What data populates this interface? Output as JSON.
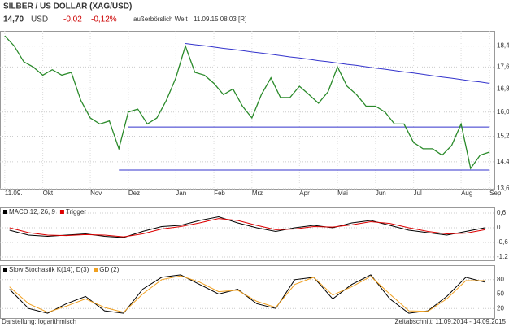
{
  "header": {
    "title": "SILBER / US DOLLAR (XAG/USD)",
    "price": "14,70",
    "unit": "USD",
    "change": "-0,02",
    "change_pct": "-0,12%",
    "market": "außerbörslich Welt",
    "timestamp": "11.09.15 08:03 [R]"
  },
  "footer": {
    "scale": "Darstellung: logarithmisch",
    "period": "Zeitabschnitt: 11.09.2014 - 14.09.2015"
  },
  "chart_data": [
    {
      "type": "line",
      "log_scale": true,
      "grid": true,
      "color": "#2a8a2a",
      "categories": [
        "11.09.",
        null,
        null,
        null,
        "Okt",
        null,
        null,
        null,
        null,
        "Nov",
        null,
        null,
        null,
        "Dez",
        null,
        null,
        null,
        null,
        "Jan",
        null,
        null,
        null,
        "Feb",
        null,
        null,
        null,
        "Mrz",
        null,
        null,
        null,
        null,
        "Apr",
        null,
        null,
        null,
        "Mai",
        null,
        null,
        null,
        "Jun",
        null,
        null,
        null,
        "Jul",
        null,
        null,
        null,
        null,
        "Aug",
        null,
        null,
        "Sep"
      ],
      "values": [
        18.8,
        18.4,
        17.8,
        17.6,
        17.3,
        17.5,
        17.3,
        17.4,
        16.4,
        15.8,
        15.6,
        15.7,
        14.8,
        16.0,
        16.1,
        15.6,
        15.8,
        16.4,
        17.2,
        18.4,
        17.4,
        17.3,
        17.0,
        16.6,
        16.8,
        16.2,
        15.8,
        16.6,
        17.2,
        16.5,
        16.5,
        16.9,
        16.6,
        16.3,
        16.7,
        17.6,
        16.9,
        16.6,
        16.2,
        16.2,
        16.0,
        15.6,
        15.6,
        15.0,
        14.8,
        14.8,
        14.6,
        14.9,
        15.6,
        14.2,
        14.6,
        14.7
      ],
      "lines": [
        {
          "color": "#3333cc",
          "values": [
            null,
            null,
            null,
            null,
            null,
            null,
            null,
            null,
            null,
            null,
            null,
            null,
            null,
            null,
            null,
            null,
            null,
            null,
            null,
            18.5,
            18.45,
            18.41,
            18.36,
            18.31,
            18.27,
            18.22,
            18.17,
            18.13,
            18.08,
            18.03,
            17.98,
            17.94,
            17.89,
            17.84,
            17.8,
            17.75,
            17.7,
            17.66,
            17.61,
            17.56,
            17.52,
            17.47,
            17.42,
            17.38,
            17.33,
            17.28,
            17.23,
            17.19,
            17.14,
            17.09,
            17.05,
            17.0
          ]
        },
        {
          "color": "#3333cc",
          "values": [
            null,
            null,
            null,
            null,
            null,
            null,
            null,
            null,
            null,
            null,
            null,
            null,
            null,
            15.5,
            15.5,
            15.5,
            15.5,
            15.5,
            15.5,
            15.5,
            15.5,
            15.5,
            15.5,
            15.5,
            15.5,
            15.5,
            15.5,
            15.5,
            15.5,
            15.5,
            15.5,
            15.5,
            15.5,
            15.5,
            15.5,
            15.5,
            15.5,
            15.5,
            15.5,
            15.5,
            15.5,
            15.5,
            15.5,
            15.5,
            15.5,
            15.5,
            15.5,
            15.5,
            15.5,
            15.5,
            15.5,
            15.5
          ]
        },
        {
          "color": "#3333cc",
          "values": [
            null,
            null,
            null,
            null,
            null,
            null,
            null,
            null,
            null,
            null,
            null,
            null,
            14.15,
            14.15,
            14.15,
            14.15,
            14.15,
            14.15,
            14.15,
            14.15,
            14.15,
            14.15,
            14.15,
            14.15,
            14.15,
            14.15,
            14.15,
            14.15,
            14.15,
            14.15,
            14.15,
            14.15,
            14.15,
            14.15,
            14.15,
            14.15,
            14.15,
            14.15,
            14.15,
            14.15,
            14.15,
            14.15,
            14.15,
            14.15,
            14.15,
            14.15,
            14.15,
            14.15,
            14.15,
            14.15,
            14.15,
            14.15
          ]
        }
      ],
      "ylim": [
        13.6,
        19.0
      ],
      "yticks": [
        {
          "value": 13.6,
          "label": "13,6"
        },
        {
          "value": 14.4,
          "label": "14,4"
        },
        {
          "value": 15.2,
          "label": "15,2"
        },
        {
          "value": 16.0,
          "label": "16,0"
        },
        {
          "value": 16.8,
          "label": "16,8"
        },
        {
          "value": 17.6,
          "label": "17,6"
        },
        {
          "value": 18.4,
          "label": "18,4"
        }
      ]
    },
    {
      "type": "line",
      "grid": true,
      "series": [
        {
          "name": "MACD 12, 26, 9",
          "color": "#000000",
          "values": [
            -0.1,
            -0.3,
            -0.35,
            -0.3,
            -0.25,
            -0.35,
            -0.4,
            -0.15,
            0.05,
            0.1,
            0.3,
            0.45,
            0.2,
            0.0,
            -0.15,
            0.0,
            0.1,
            0.0,
            0.2,
            0.3,
            0.1,
            -0.1,
            -0.2,
            -0.3,
            -0.15,
            0.0
          ]
        },
        {
          "name": "Trigger",
          "color": "#dd0000",
          "values": [
            0.0,
            -0.2,
            -0.3,
            -0.32,
            -0.28,
            -0.3,
            -0.37,
            -0.25,
            -0.05,
            0.05,
            0.2,
            0.38,
            0.3,
            0.1,
            -0.08,
            -0.05,
            0.05,
            0.03,
            0.12,
            0.25,
            0.18,
            0.0,
            -0.15,
            -0.25,
            -0.22,
            -0.08
          ]
        }
      ],
      "ylim": [
        -1.2,
        0.6
      ],
      "yticks": [
        {
          "value": -1.2,
          "label": "-1,2"
        },
        {
          "value": -0.6,
          "label": "-0,6"
        },
        0,
        {
          "value": 0.6,
          "label": "0,6"
        }
      ]
    },
    {
      "type": "line",
      "grid": true,
      "series": [
        {
          "name": "Slow Stochastik K(14), D(3)",
          "color": "#000000",
          "values": [
            60,
            20,
            10,
            30,
            45,
            15,
            10,
            60,
            85,
            90,
            70,
            50,
            60,
            30,
            20,
            80,
            85,
            40,
            70,
            90,
            40,
            10,
            15,
            45,
            85,
            75
          ]
        },
        {
          "name": "GD (2)",
          "color": "#f0a020",
          "values": [
            65,
            30,
            12,
            25,
            40,
            22,
            12,
            50,
            80,
            88,
            75,
            55,
            58,
            35,
            22,
            70,
            85,
            48,
            65,
            87,
            50,
            15,
            14,
            40,
            78,
            78
          ]
        }
      ],
      "ylim": [
        0,
        100
      ],
      "yticks": [
        20,
        50,
        80
      ]
    }
  ]
}
